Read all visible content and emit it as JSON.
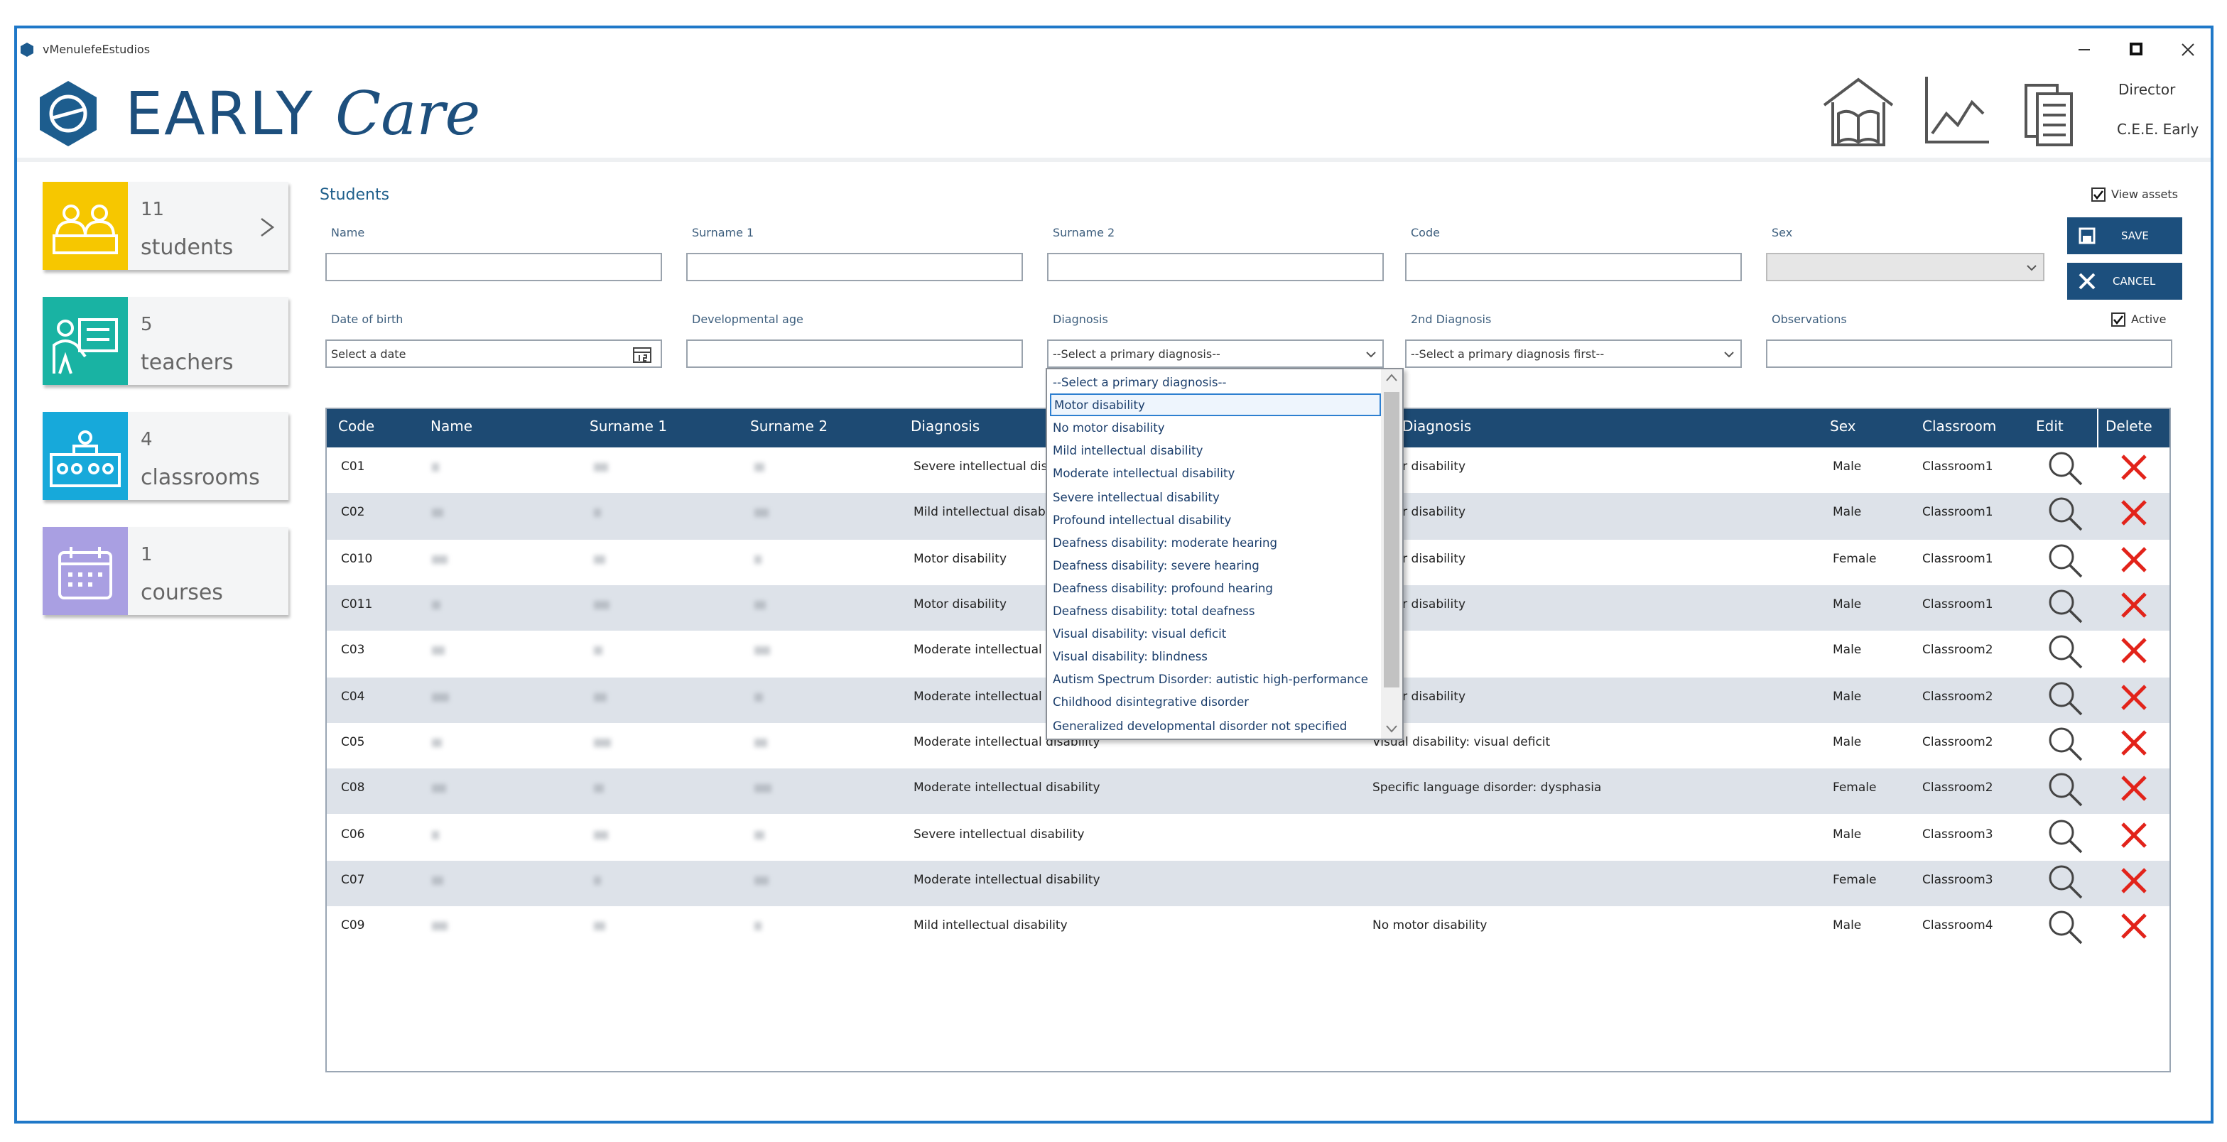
{
  "window": {
    "title": "vMenuIefeEstudios"
  },
  "header": {
    "brand_main": "EARLY",
    "brand_script": "Care",
    "user_role": "Director",
    "user_center": "C.E.E. Early"
  },
  "sidebar": [
    {
      "count": 11,
      "label": "students",
      "color": "#f6c700"
    },
    {
      "count": 5,
      "label": "teachers",
      "color": "#19b3a3"
    },
    {
      "count": 4,
      "label": "classrooms",
      "color": "#17a9da"
    },
    {
      "count": 1,
      "label": "courses",
      "color": "#a99fe2"
    }
  ],
  "form": {
    "title": "Students",
    "view_assets": "View assets",
    "active": "Active",
    "save": "SAVE",
    "cancel": "CANCEL",
    "fields": [
      {
        "label": "Name",
        "kind": "text"
      },
      {
        "label": "Surname 1",
        "kind": "text"
      },
      {
        "label": "Surname 2",
        "kind": "text"
      },
      {
        "label": "Code",
        "kind": "text"
      },
      {
        "label": "Sex",
        "kind": "select-disabled"
      },
      {
        "label": "Date of birth",
        "kind": "date",
        "placeholder": "Select a date"
      },
      {
        "label": "Developmental age",
        "kind": "text"
      },
      {
        "label": "Diagnosis",
        "kind": "select",
        "placeholder": "--Select a primary diagnosis--"
      },
      {
        "label": "2nd Diagnosis",
        "kind": "select",
        "placeholder": "--Select a primary diagnosis first--"
      },
      {
        "label": "Observations",
        "kind": "text"
      }
    ]
  },
  "table": {
    "columns": [
      "Code",
      "Name",
      "Surname 1",
      "Surname 2",
      "Diagnosis",
      "Diagnosis",
      "Sex",
      "Classroom",
      "Edit",
      "Delete"
    ],
    "rows": [
      {
        "code": "C01",
        "diagnosis": "Severe intellectual disability",
        "diagnosis_2": "Motor disability",
        "sex": "Male",
        "classroom": "Classroom1"
      },
      {
        "code": "C02",
        "diagnosis": "Mild intellectual disability",
        "diagnosis_2": "Motor disability",
        "sex": "Male",
        "classroom": "Classroom1"
      },
      {
        "code": "C010",
        "diagnosis": "Motor disability",
        "diagnosis_2": "Motor disability",
        "sex": "Female",
        "classroom": "Classroom1"
      },
      {
        "code": "C011",
        "diagnosis": "Motor disability",
        "diagnosis_2": "Motor disability",
        "sex": "Male",
        "classroom": "Classroom1"
      },
      {
        "code": "C03",
        "diagnosis": "Moderate intellectual disability",
        "diagnosis_2": null,
        "sex": "Male",
        "classroom": "Classroom2"
      },
      {
        "code": "C04",
        "diagnosis": "Moderate intellectual disability",
        "diagnosis_2": "Motor disability",
        "sex": "Male",
        "classroom": "Classroom2"
      },
      {
        "code": "C05",
        "diagnosis": "Moderate intellectual disability",
        "diagnosis_2": "Visual disability: visual deficit",
        "sex": "Male",
        "classroom": "Classroom2"
      },
      {
        "code": "C08",
        "diagnosis": "Moderate intellectual disability",
        "diagnosis_2": "Specific language disorder: dysphasia",
        "sex": "Female",
        "classroom": "Classroom2"
      },
      {
        "code": "C06",
        "diagnosis": "Severe intellectual disability",
        "diagnosis_2": null,
        "sex": "Male",
        "classroom": "Classroom3"
      },
      {
        "code": "C07",
        "diagnosis": "Moderate intellectual disability",
        "diagnosis_2": null,
        "sex": "Female",
        "classroom": "Classroom3"
      },
      {
        "code": "C09",
        "diagnosis": "Mild intellectual disability",
        "diagnosis_2": "No motor disability",
        "sex": "Male",
        "classroom": "Classroom4"
      }
    ]
  },
  "dropdown": {
    "options": [
      {
        "text": "--Select a primary diagnosis--"
      },
      {
        "text": "Motor disability",
        "highlighted": true
      },
      {
        "text": "No motor disability"
      },
      {
        "text": "Mild intellectual disability"
      },
      {
        "text": "Moderate intellectual disability"
      },
      {
        "text": "Severe intellectual disability"
      },
      {
        "text": "Profound intellectual disability"
      },
      {
        "text": "Deafness disability: moderate hearing"
      },
      {
        "text": "Deafness disability: severe hearing"
      },
      {
        "text": "Deafness disability: profound hearing"
      },
      {
        "text": "Deafness disability: total deafness"
      },
      {
        "text": "Visual disability: visual deficit"
      },
      {
        "text": "Visual disability: blindness"
      },
      {
        "text": "Autism Spectrum Disorder: autistic high-performance"
      },
      {
        "text": "Childhood disintegrative disorder"
      },
      {
        "text": "Generalized developmental disorder not specified"
      }
    ]
  }
}
